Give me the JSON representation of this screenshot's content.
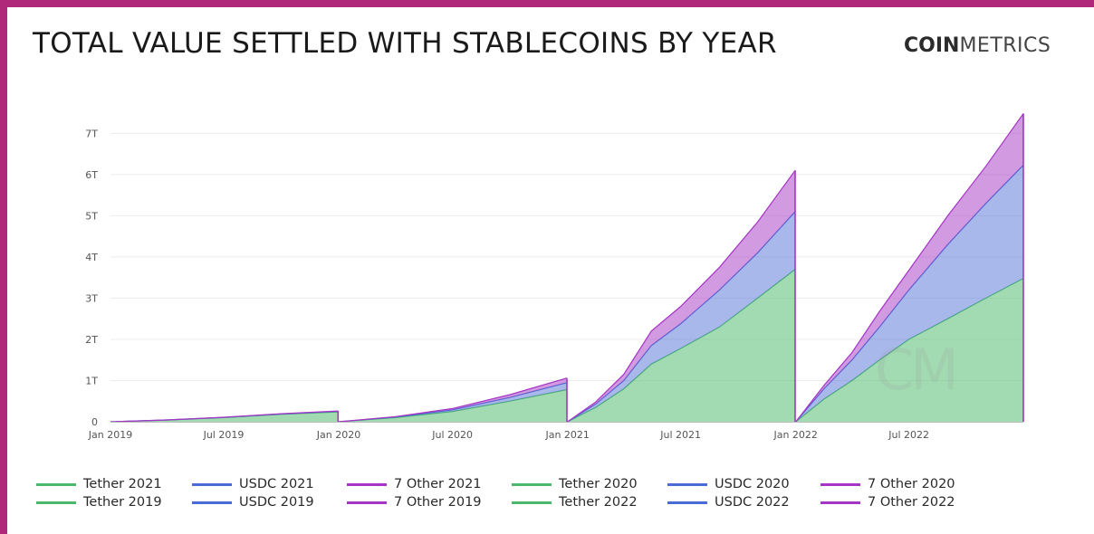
{
  "header": {
    "title": "TOTAL VALUE SETTLED WITH STABLECOINS BY YEAR",
    "logo_bold": "COIN",
    "logo_light": "METRICS"
  },
  "watermark": "CM",
  "colors": {
    "tether": "#4cb86b",
    "usdc": "#4a6ad6",
    "other": "#a535c4",
    "frame": "#b0287a"
  },
  "chart_data": {
    "type": "area",
    "stacked": true,
    "title": "TOTAL VALUE SETTLED WITH STABLECOINS BY YEAR",
    "xlabel": "",
    "ylabel": "",
    "x_range": [
      "2019-01-01",
      "2022-12-31"
    ],
    "ylim": [
      0,
      7.6
    ],
    "y_unit": "T",
    "y_ticks": [
      "0",
      "1T",
      "2T",
      "3T",
      "4T",
      "5T",
      "6T",
      "7T"
    ],
    "y_tick_values": [
      0,
      1,
      2,
      3,
      4,
      5,
      6,
      7
    ],
    "x_ticks": [
      "Jan 2019",
      "Jul 2019",
      "Jan 2020",
      "Jul 2020",
      "Jan 2021",
      "Jul 2021",
      "Jan 2022",
      "Jul 2022"
    ],
    "x_tick_values": [
      "2019-01-01",
      "2019-07-01",
      "2020-01-01",
      "2020-07-01",
      "2021-01-01",
      "2021-07-01",
      "2022-01-01",
      "2022-07-01"
    ],
    "grid": true,
    "legend_position": "bottom",
    "legend": [
      [
        "Tether 2021",
        "USDC 2021",
        "7 Other 2021",
        "Tether 2020",
        "USDC 2020",
        "7 Other 2020"
      ],
      [
        "Tether 2019",
        "USDC 2019",
        "7 Other 2019",
        "Tether 2022",
        "USDC 2022",
        "7 Other 2022"
      ]
    ],
    "series": [
      {
        "name": "2019",
        "x": [
          "2019-01-01",
          "2019-04-01",
          "2019-07-01",
          "2019-10-01",
          "2019-12-31"
        ],
        "Tether": [
          0,
          0.04,
          0.1,
          0.18,
          0.24
        ],
        "USDC": [
          0,
          0.003,
          0.006,
          0.009,
          0.012
        ],
        "7 Other": [
          0,
          0.002,
          0.004,
          0.007,
          0.01
        ]
      },
      {
        "name": "2020",
        "x": [
          "2020-01-01",
          "2020-04-01",
          "2020-07-01",
          "2020-10-01",
          "2020-12-31"
        ],
        "Tether": [
          0,
          0.1,
          0.25,
          0.5,
          0.78
        ],
        "USDC": [
          0,
          0.015,
          0.04,
          0.09,
          0.17
        ],
        "7 Other": [
          0,
          0.01,
          0.03,
          0.07,
          0.11
        ]
      },
      {
        "name": "2021",
        "x": [
          "2021-01-01",
          "2021-02-15",
          "2021-04-01",
          "2021-05-15",
          "2021-07-01",
          "2021-09-01",
          "2021-11-01",
          "2021-12-31"
        ],
        "Tether": [
          0,
          0.35,
          0.8,
          1.4,
          1.78,
          2.3,
          3.0,
          3.7
        ],
        "USDC": [
          0,
          0.08,
          0.2,
          0.45,
          0.6,
          0.9,
          1.1,
          1.4
        ],
        "7 Other": [
          0,
          0.05,
          0.15,
          0.35,
          0.42,
          0.55,
          0.75,
          1.0
        ]
      },
      {
        "name": "2022",
        "x": [
          "2022-01-01",
          "2022-02-15",
          "2022-04-01",
          "2022-05-15",
          "2022-07-01",
          "2022-09-01",
          "2022-11-01",
          "2022-12-31"
        ],
        "Tether": [
          0,
          0.55,
          1.0,
          1.5,
          2.0,
          2.5,
          3.0,
          3.48
        ],
        "USDC": [
          0,
          0.25,
          0.5,
          0.8,
          1.2,
          1.8,
          2.3,
          2.75
        ],
        "7 Other": [
          0,
          0.08,
          0.18,
          0.38,
          0.48,
          0.7,
          0.9,
          1.25
        ]
      }
    ]
  }
}
